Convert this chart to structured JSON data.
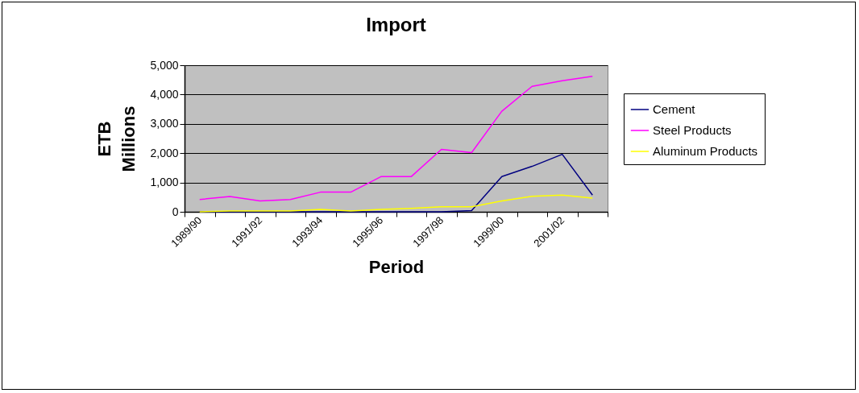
{
  "chart_data": {
    "type": "line",
    "title": "Import",
    "xlabel": "Period",
    "ylabel": "ETB Millions",
    "categories": [
      "1989/90",
      null,
      "1991/92",
      null,
      "1993/94",
      null,
      "1995/96",
      null,
      "1997/98",
      null,
      "1999/00",
      null,
      "2001/02",
      null
    ],
    "series": [
      {
        "name": "Cement",
        "color": "#000080",
        "values": [
          0,
          0,
          0,
          0,
          0,
          0,
          0,
          0,
          0,
          40,
          1200,
          1550,
          1960,
          570
        ]
      },
      {
        "name": "Steel Products",
        "color": "#ff00ff",
        "values": [
          420,
          520,
          370,
          420,
          670,
          670,
          1200,
          1200,
          2130,
          2020,
          3430,
          4280,
          4470,
          4620
        ]
      },
      {
        "name": "Aluminum Products",
        "color": "#ffff00",
        "values": [
          0,
          30,
          30,
          30,
          80,
          30,
          80,
          120,
          170,
          170,
          370,
          530,
          570,
          470
        ]
      }
    ],
    "ylim": [
      0,
      5000
    ],
    "yticks": [
      {
        "value": 0,
        "label": "0"
      },
      {
        "value": 1000,
        "label": "1,000"
      },
      {
        "value": 2000,
        "label": "2,000"
      },
      {
        "value": 3000,
        "label": "3,000"
      },
      {
        "value": 4000,
        "label": "4,000"
      },
      {
        "value": 5000,
        "label": "5,000"
      }
    ],
    "grid": "y",
    "legend": "right",
    "marker": "none",
    "line_style": "solid"
  }
}
